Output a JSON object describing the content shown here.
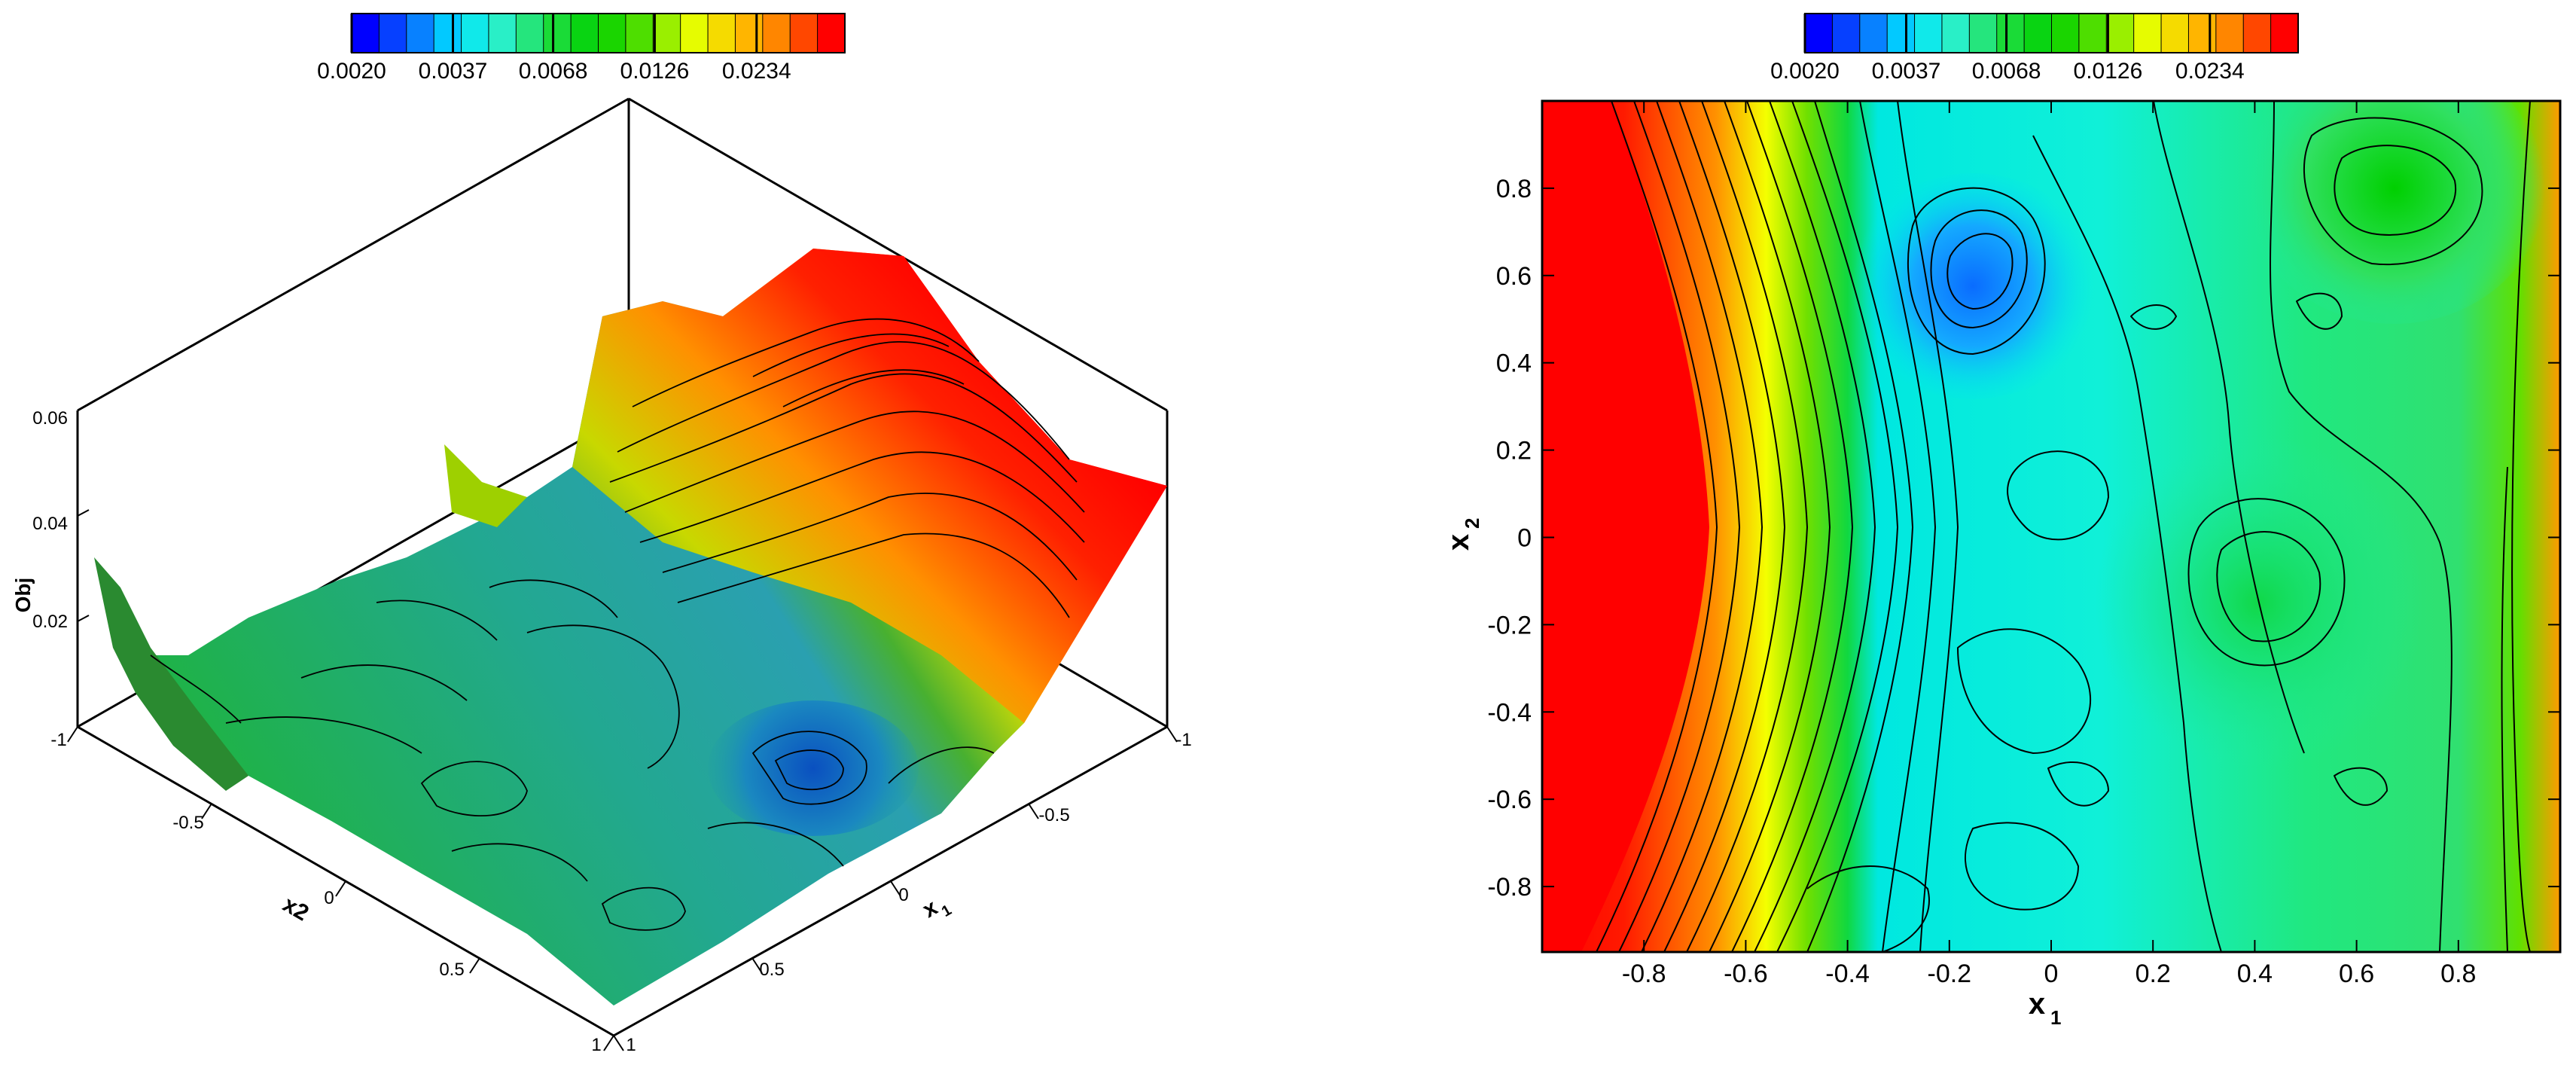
{
  "colorbar": {
    "scale": "log",
    "range": [
      0.002,
      0.04
    ],
    "tick_labels": [
      "0.0020",
      "0.0037",
      "0.0068",
      "0.0126",
      "0.0234"
    ],
    "colors": [
      "#0000ff",
      "#0a6cff",
      "#00e5ff",
      "#2cf0c4",
      "#1edc3e",
      "#00d000",
      "#58e000",
      "#e4ff00",
      "#ffc800",
      "#ff7800",
      "#ff0000"
    ]
  },
  "chart_data": [
    {
      "type": "surface",
      "view": "3d",
      "axes": {
        "x": {
          "label_main": "x",
          "label_sub": "1",
          "range": [
            -1,
            1
          ],
          "ticks": [
            "-1",
            "-0.5",
            "0",
            "0.5",
            "1"
          ]
        },
        "y": {
          "label": "x2",
          "range": [
            -1,
            1
          ],
          "ticks": [
            "-1",
            "-0.5",
            "0",
            "0.5",
            "1"
          ]
        },
        "z": {
          "label": "Obj",
          "range": [
            0,
            0.06
          ],
          "ticks": [
            "0.02",
            "0.04",
            "0.06"
          ]
        }
      },
      "surface_description": "objective surface: high ridge (Obj ~0.05) near x1 = -1 across all x2, low basin (~0.003) around x1 = -0.15, x2 = 0.55; rising edge near x1 = 1, x2 = -0.9",
      "samples": [
        {
          "x1": -1.0,
          "x2": 0.0,
          "obj": 0.05
        },
        {
          "x1": -0.5,
          "x2": 0.0,
          "obj": 0.012
        },
        {
          "x1": -0.15,
          "x2": 0.55,
          "obj": 0.003
        },
        {
          "x1": 0.3,
          "x2": 0.2,
          "obj": 0.005
        },
        {
          "x1": 0.6,
          "x2": 0.75,
          "obj": 0.008
        },
        {
          "x1": 1.0,
          "x2": -0.9,
          "obj": 0.035
        }
      ]
    },
    {
      "type": "contour",
      "axes": {
        "x": {
          "label_main": "x",
          "label_sub": "1",
          "range": [
            -1,
            1
          ],
          "ticks": [
            "-0.8",
            "-0.6",
            "-0.4",
            "-0.2",
            "0",
            "0.2",
            "0.4",
            "0.6",
            "0.8"
          ]
        },
        "y": {
          "label_main": "x",
          "label_sub": "2",
          "range": [
            -0.95,
            1
          ],
          "ticks": [
            "-0.8",
            "-0.6",
            "-0.4",
            "-0.2",
            "0",
            "0.2",
            "0.4",
            "0.6",
            "0.8"
          ]
        }
      },
      "features": [
        {
          "kind": "max",
          "x1": -0.95,
          "x2": 0.0,
          "obj": 0.04
        },
        {
          "kind": "min",
          "x1": -0.15,
          "x2": 0.55,
          "obj": 0.003
        },
        {
          "kind": "local_max",
          "x1": 0.65,
          "x2": 0.75,
          "obj": 0.008
        },
        {
          "kind": "local_max",
          "x1": 0.55,
          "x2": -0.2,
          "obj": 0.007
        },
        {
          "kind": "edge_rise",
          "x1": 0.95,
          "x2": -0.5,
          "obj": 0.03
        }
      ]
    }
  ]
}
